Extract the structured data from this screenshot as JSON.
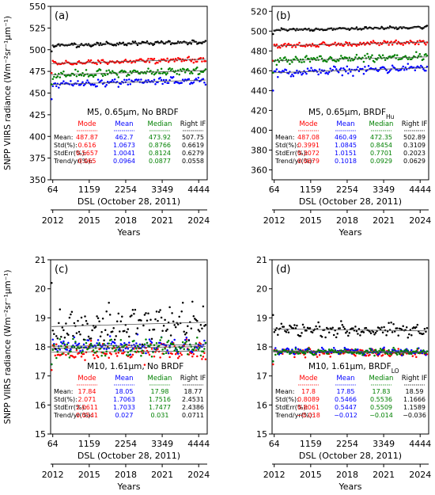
{
  "chart_data": [
    {
      "panel_label": "(a)",
      "type": "scatter",
      "ylabel": "SNPP VIIRS radiance (Wm⁻²sr⁻¹μm⁻¹)",
      "xlabel_top": "DSL (October 28, 2011)",
      "xlabel_bottom": "Years",
      "xlim": [
        0,
        4700
      ],
      "ylim": [
        350,
        550
      ],
      "yticks": [
        "350",
        "375",
        "400",
        "425",
        "450",
        "475",
        "500",
        "525",
        "550"
      ],
      "dsl_ticks": [
        "64",
        "1159",
        "2254",
        "3349",
        "4444"
      ],
      "year_ticks": [
        "2012",
        "2015",
        "2018",
        "2021",
        "2024"
      ],
      "title": "M5, 0.65μm, No BRDF",
      "grid": false,
      "series": [
        {
          "name": "Mode",
          "color": "#ff0000",
          "start": 484,
          "end": 489,
          "spread": 3.2,
          "outlier": 473
        },
        {
          "name": "Mean",
          "color": "#0000ff",
          "start": 460,
          "end": 465,
          "spread": 4.5,
          "outlier": 443
        },
        {
          "name": "Median",
          "color": "#008000",
          "start": 471,
          "end": 476,
          "spread": 4.5,
          "outlier": 460
        },
        {
          "name": "Right IF",
          "color": "#000000",
          "start": 505,
          "end": 509,
          "spread": 2.5,
          "outlier": 498
        }
      ],
      "stats_table": {
        "headers": [
          "Mode",
          "Mean",
          "Median",
          "Right IF"
        ],
        "rows": [
          {
            "label": "Mean:",
            "values": [
              "487.87",
              "462.7",
              "473.92",
              "507.75"
            ]
          },
          {
            "label": "Std(%):",
            "values": [
              "0.616",
              "1.0673",
              "0.8766",
              "0.6619"
            ]
          },
          {
            "label": "StdErr(%):",
            "values": [
              "0.5657",
              "1.0041",
              "0.8124",
              "0.6279"
            ]
          },
          {
            "label": "Trend/yr(%):",
            "values": [
              "0.065",
              "0.0964",
              "0.0877",
              "0.0558"
            ]
          }
        ]
      }
    },
    {
      "panel_label": "(b)",
      "type": "scatter",
      "ylabel": "",
      "xlabel_top": "DSL (October 28, 2011)",
      "xlabel_bottom": "Years",
      "xlim": [
        0,
        4700
      ],
      "ylim": [
        350,
        525
      ],
      "yticks": [
        "360",
        "380",
        "400",
        "420",
        "440",
        "460",
        "480",
        "500",
        "520"
      ],
      "dsl_ticks": [
        "64",
        "1159",
        "2254",
        "3349",
        "4444"
      ],
      "year_ticks": [
        "2012",
        "2015",
        "2018",
        "2021",
        "2024"
      ],
      "title": "M5, 0.65μm, BRDF",
      "title_subscript": "Hu",
      "grid": false,
      "series": [
        {
          "name": "Mode",
          "color": "#ff0000",
          "start": 485,
          "end": 489,
          "spread": 2.5,
          "outlier": 470
        },
        {
          "name": "Mean",
          "color": "#0000ff",
          "start": 458,
          "end": 463,
          "spread": 4.5,
          "outlier": 440
        },
        {
          "name": "Median",
          "color": "#008000",
          "start": 470,
          "end": 474,
          "spread": 4.0,
          "outlier": 458
        },
        {
          "name": "Right IF",
          "color": "#000000",
          "start": 501,
          "end": 504,
          "spread": 1.5,
          "outlier": 497
        }
      ],
      "stats_table": {
        "headers": [
          "Mode",
          "Mean",
          "Median",
          "Right IF"
        ],
        "rows": [
          {
            "label": "Mean:",
            "values": [
              "487.08",
              "460.49",
              "472.35",
              "502.89"
            ]
          },
          {
            "label": "Std(%):",
            "values": [
              "0.3991",
              "1.0845",
              "0.8454",
              "0.3109"
            ]
          },
          {
            "label": "StdErr(%):",
            "values": [
              "0.3072",
              "1.0151",
              "0.7701",
              "0.2023"
            ]
          },
          {
            "label": "Trend/yr(%):",
            "values": [
              "0.0679",
              "0.1018",
              "0.0929",
              "0.0629"
            ]
          }
        ]
      }
    },
    {
      "panel_label": "(c)",
      "type": "scatter",
      "ylabel": "SNPP VIIRS radiance (Wm⁻²sr⁻¹μm⁻¹)",
      "xlabel_top": "DSL (October 28, 2011)",
      "xlabel_bottom": "Years",
      "xlim": [
        0,
        4700
      ],
      "ylim": [
        15,
        21
      ],
      "yticks": [
        "15",
        "16",
        "17",
        "18",
        "19",
        "20",
        "21"
      ],
      "dsl_ticks": [
        "64",
        "1159",
        "2254",
        "3349",
        "4444"
      ],
      "year_ticks": [
        "2012",
        "2015",
        "2018",
        "2021",
        "2024"
      ],
      "title": "M10, 1.61μm, No BRDF",
      "grid": false,
      "series": [
        {
          "name": "Mode",
          "color": "#ff0000",
          "start": 17.82,
          "end": 17.86,
          "spread": 0.35,
          "outlier": 17.2
        },
        {
          "name": "Mean",
          "color": "#0000ff",
          "start": 18.02,
          "end": 18.08,
          "spread": 0.3,
          "outlier": 17.4
        },
        {
          "name": "Median",
          "color": "#008000",
          "start": 17.95,
          "end": 18.01,
          "spread": 0.3,
          "outlier": 17.4
        },
        {
          "name": "Right IF",
          "color": "#000000",
          "start": 18.7,
          "end": 18.85,
          "spread": 0.75,
          "outlier": 20.2
        }
      ],
      "stats_table": {
        "headers": [
          "Mode",
          "Mean",
          "Median",
          "Right IF"
        ],
        "rows": [
          {
            "label": "Mean:",
            "values": [
              "17.84",
              "18.05",
              "17.98",
              "18.77"
            ]
          },
          {
            "label": "Std(%):",
            "values": [
              "2.071",
              "1.7063",
              "1.7516",
              "2.4531"
            ]
          },
          {
            "label": "StdErr(%):",
            "values": [
              "2.0611",
              "1.7033",
              "1.7477",
              "2.4386"
            ]
          },
          {
            "label": "Trend/yr(%):",
            "values": [
              "0.0541",
              "0.027",
              "0.031",
              "0.0711"
            ]
          }
        ]
      }
    },
    {
      "panel_label": "(d)",
      "type": "scatter",
      "ylabel": "",
      "xlabel_top": "DSL (October 28, 2011)",
      "xlabel_bottom": "Years",
      "xlim": [
        0,
        4700
      ],
      "ylim": [
        15,
        21
      ],
      "yticks": [
        "15",
        "16",
        "17",
        "18",
        "19",
        "20",
        "21"
      ],
      "dsl_ticks": [
        "64",
        "1159",
        "2254",
        "3349",
        "4444"
      ],
      "year_ticks": [
        "2012",
        "2015",
        "2018",
        "2021",
        "2024"
      ],
      "title": "M10, 1.61μm, BRDF",
      "title_subscript": "LO",
      "grid": false,
      "series": [
        {
          "name": "Mode",
          "color": "#ff0000",
          "start": 17.82,
          "end": 17.78,
          "spread": 0.16,
          "outlier": 17.4
        },
        {
          "name": "Mean",
          "color": "#0000ff",
          "start": 17.87,
          "end": 17.83,
          "spread": 0.12,
          "outlier": 17.5
        },
        {
          "name": "Median",
          "color": "#008000",
          "start": 17.85,
          "end": 17.81,
          "spread": 0.12,
          "outlier": 17.5
        },
        {
          "name": "Right IF",
          "color": "#000000",
          "start": 18.62,
          "end": 18.55,
          "spread": 0.25,
          "outlier": 19.1
        }
      ],
      "stats_table": {
        "headers": [
          "Mode",
          "Mean",
          "Median",
          "Right IF"
        ],
        "rows": [
          {
            "label": "Mean:",
            "values": [
              "17.8",
              "17.85",
              "17.83",
              "18.59"
            ]
          },
          {
            "label": "Std(%):",
            "values": [
              "0.8089",
              "0.5466",
              "0.5536",
              "1.1666"
            ]
          },
          {
            "label": "StdErr(%):",
            "values": [
              "0.8061",
              "0.5447",
              "0.5509",
              "1.1589"
            ]
          },
          {
            "label": "Trend/yr(%):",
            "values": [
              "−0.018",
              "−0.012",
              "−0.014",
              "−0.036"
            ]
          }
        ]
      }
    }
  ]
}
